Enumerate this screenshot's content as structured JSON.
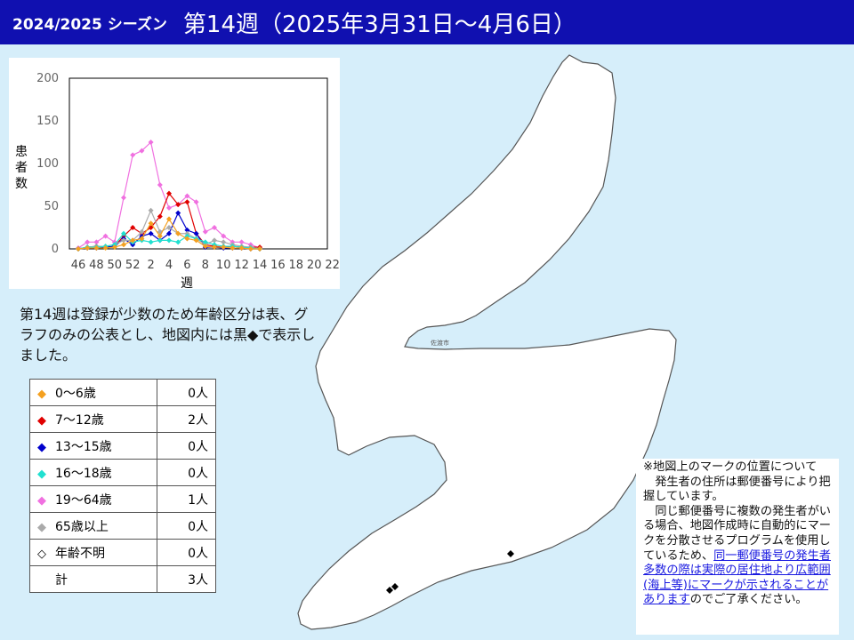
{
  "header": {
    "season": "2024/2025 シーズン",
    "week_title": "第14週（2025年3月31日～4月6日）"
  },
  "colors": {
    "header_bg": "#1010b0",
    "sea": "#d6eefa",
    "land": "#ffffff",
    "age_0_6": "#f4a020",
    "age_7_12": "#e00000",
    "age_13_15": "#0000cc",
    "age_16_18": "#20e0d0",
    "age_19_64": "#f070e0",
    "age_65plus": "#aaaaaa"
  },
  "map": {
    "city_label": "佐渡市",
    "case_marker": "black-diamond"
  },
  "chart_data": {
    "type": "line",
    "ylabel": "患者数",
    "xlabel": "週",
    "ylim": [
      0,
      200
    ],
    "yticks": [
      "0",
      "50",
      "100",
      "150",
      "200"
    ],
    "xticks": [
      "46",
      "48",
      "50",
      "52",
      "2",
      "4",
      "6",
      "8",
      "10",
      "12",
      "14",
      "16",
      "18",
      "20",
      "22"
    ],
    "x": [
      "46",
      "47",
      "48",
      "49",
      "50",
      "51",
      "52",
      "1",
      "2",
      "3",
      "4",
      "5",
      "6",
      "7",
      "8",
      "9",
      "10",
      "11",
      "12",
      "13",
      "14"
    ],
    "series": [
      {
        "key": "age_19_64",
        "values": [
          1,
          8,
          8,
          15,
          8,
          60,
          110,
          115,
          125,
          75,
          48,
          52,
          62,
          55,
          20,
          25,
          15,
          8,
          8,
          5,
          1
        ]
      },
      {
        "key": "age_7_12",
        "values": [
          0,
          2,
          3,
          2,
          3,
          15,
          25,
          18,
          25,
          38,
          65,
          52,
          55,
          18,
          5,
          3,
          2,
          3,
          2,
          2,
          2
        ]
      },
      {
        "key": "age_13_15",
        "values": [
          0,
          1,
          1,
          2,
          3,
          12,
          5,
          15,
          18,
          10,
          18,
          42,
          22,
          18,
          2,
          2,
          1,
          1,
          1,
          0,
          0
        ]
      },
      {
        "key": "age_65plus",
        "values": [
          0,
          2,
          3,
          3,
          5,
          10,
          10,
          20,
          45,
          20,
          25,
          18,
          18,
          12,
          5,
          10,
          8,
          5,
          3,
          2,
          0
        ]
      },
      {
        "key": "age_16_18",
        "values": [
          0,
          2,
          2,
          3,
          5,
          18,
          8,
          10,
          8,
          10,
          10,
          8,
          15,
          12,
          8,
          5,
          3,
          3,
          2,
          1,
          0
        ]
      },
      {
        "key": "age_0_6",
        "values": [
          0,
          1,
          1,
          1,
          2,
          5,
          10,
          12,
          30,
          15,
          35,
          18,
          12,
          10,
          3,
          2,
          2,
          1,
          1,
          0,
          0
        ]
      }
    ]
  },
  "note": "第14週は登録が少数のため年齢区分は表、グラフのみの公表とし、地図内には黒◆で表示しました。",
  "legend": {
    "rows": [
      {
        "marker": "◆",
        "color_key": "age_0_6",
        "label": "0～6歳",
        "count": "0人"
      },
      {
        "marker": "◆",
        "color_key": "age_7_12",
        "label": "7～12歳",
        "count": "2人"
      },
      {
        "marker": "◆",
        "color_key": "age_13_15",
        "label": "13～15歳",
        "count": "0人"
      },
      {
        "marker": "◆",
        "color_key": "age_16_18",
        "label": "16～18歳",
        "count": "0人"
      },
      {
        "marker": "◆",
        "color_key": "age_19_64",
        "label": "19～64歳",
        "count": "1人"
      },
      {
        "marker": "◆",
        "color_key": "age_65plus",
        "label": "65歳以上",
        "count": "0人"
      },
      {
        "marker": "◇",
        "color_key": "",
        "label": "年齢不明",
        "count": "0人"
      },
      {
        "marker": "",
        "color_key": "",
        "label": "計",
        "count": "3人"
      }
    ]
  },
  "notice": {
    "line1": "※地図上のマークの位置について",
    "p1": "発生者の住所は郵便番号により把握しています。",
    "p2_plain": "同じ郵便番号に複数の発生者がいる場合、地図作成時に自動的にマークを分散させるプログラムを使用しているため、",
    "p2_link": "同一郵便番号の発生者多数の際は実際の居住地より広範囲(海上等)にマークが示されることがあります",
    "p2_end": "のでご了承ください。"
  }
}
